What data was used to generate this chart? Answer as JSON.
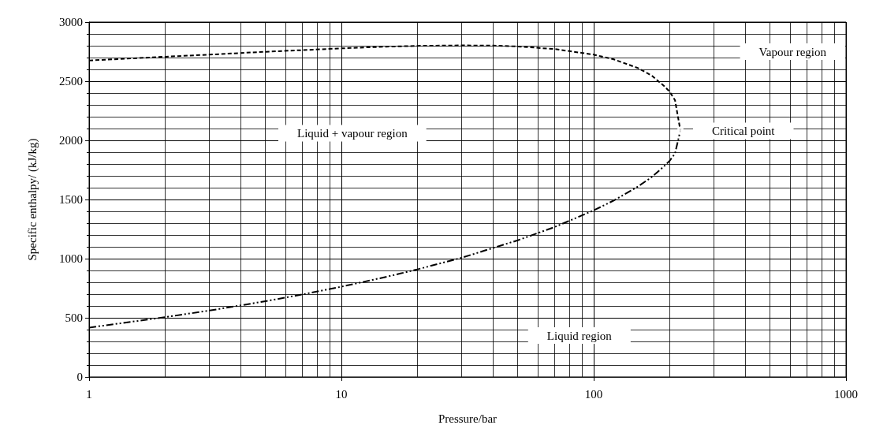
{
  "chart_data": {
    "type": "line",
    "xlabel": "Pressure/bar",
    "ylabel": "Specific enthalpy/ (kJ/kg)",
    "log": "x",
    "xlim": [
      1,
      1000
    ],
    "xticks": [
      1,
      10,
      100,
      1000
    ],
    "ylim": [
      0,
      3000
    ],
    "yticks": [
      0,
      500,
      1000,
      1500,
      2000,
      2500,
      3000
    ],
    "grid": true,
    "series": [
      {
        "color": "#000000",
        "line_style": "dashed",
        "x": [
          1,
          2,
          3,
          5,
          7,
          10,
          15,
          20,
          30,
          40,
          50,
          70,
          100,
          120,
          150,
          170,
          190,
          200,
          210,
          220.6
        ],
        "values": [
          2675,
          2707,
          2725,
          2749,
          2763,
          2778,
          2792,
          2799,
          2803,
          2801,
          2794,
          2772,
          2725,
          2685,
          2611,
          2547,
          2460,
          2412,
          2340,
          2084
        ]
      },
      {
        "color": "#000000",
        "line_style": "dotted",
        "x": [
          1,
          2,
          3,
          5,
          7,
          10,
          15,
          20,
          30,
          50,
          70,
          100,
          120,
          150,
          170,
          190,
          200,
          210,
          220.6
        ],
        "values": [
          417,
          505,
          561,
          640,
          697,
          763,
          845,
          909,
          1008,
          1155,
          1267,
          1408,
          1491,
          1611,
          1690,
          1781,
          1827,
          1888,
          2084
        ]
      },
      {
        "type": "scatter",
        "color": "#ffffff",
        "marker": "circle",
        "x": [
          220.6
        ],
        "values": [
          2084
        ]
      }
    ],
    "annotations": [
      "Vapour region",
      "Liquid + vapour region",
      {
        "text": "Critical point",
        "x": 220.6,
        "y": 2084
      },
      "Liquid region"
    ]
  }
}
